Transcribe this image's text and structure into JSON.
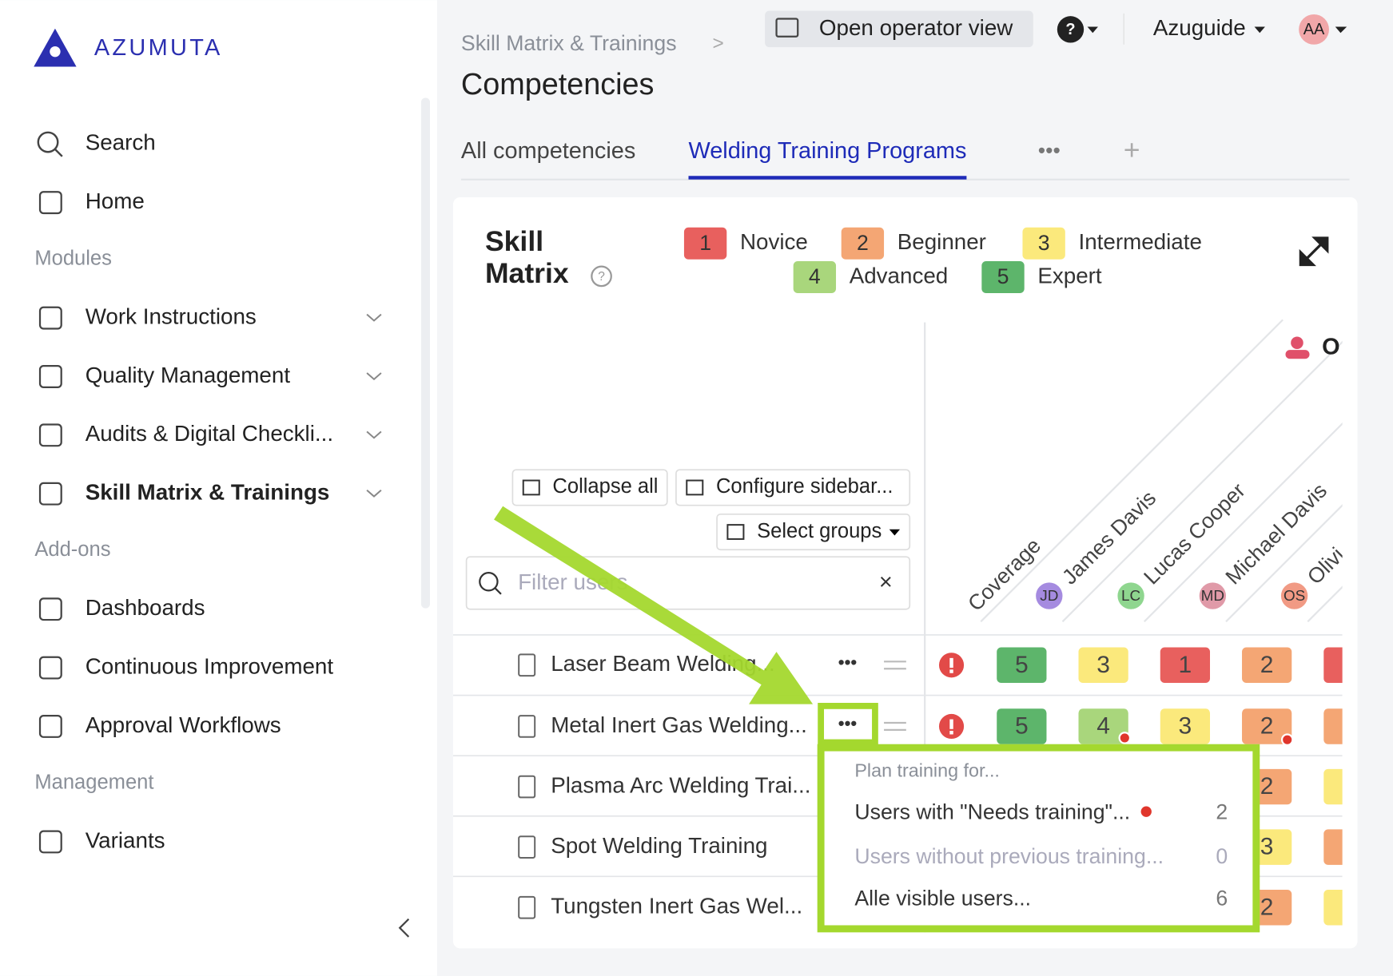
{
  "brand": "AZUMUTA",
  "sidebar": {
    "top": [
      {
        "label": "Search"
      },
      {
        "label": "Home"
      }
    ],
    "sections": [
      {
        "title": "Modules",
        "items": [
          {
            "label": "Work Instructions",
            "expandable": true
          },
          {
            "label": "Quality Management",
            "expandable": true
          },
          {
            "label": "Audits & Digital Checkli...",
            "expandable": true
          },
          {
            "label": "Skill Matrix & Trainings",
            "expandable": true,
            "active": true
          }
        ]
      },
      {
        "title": "Add-ons",
        "items": [
          {
            "label": "Dashboards"
          },
          {
            "label": "Continuous Improvement"
          },
          {
            "label": "Approval Workflows"
          }
        ]
      },
      {
        "title": "Management",
        "items": [
          {
            "label": "Variants"
          }
        ]
      }
    ]
  },
  "topbar": {
    "operator_view": "Open operator view",
    "workspace": "Azuguide",
    "avatar": "AA"
  },
  "breadcrumb": "Skill Matrix & Trainings",
  "page_title": "Competencies",
  "tabs": [
    "All competencies",
    "Welding Training Programs"
  ],
  "active_tab": 1,
  "matrix": {
    "title_lines": [
      "Skill",
      "Matrix"
    ],
    "legend": [
      {
        "level": 1,
        "label": "Novice",
        "color": "#e8605e"
      },
      {
        "level": 2,
        "label": "Beginner",
        "color": "#f4a674"
      },
      {
        "level": 3,
        "label": "Intermediate",
        "color": "#fbe97c"
      },
      {
        "level": 4,
        "label": "Advanced",
        "color": "#a9d67c"
      },
      {
        "level": 5,
        "label": "Expert",
        "color": "#5db56b"
      }
    ],
    "buttons": {
      "collapse": "Collapse all",
      "configure": "Configure sidebar...",
      "groups": "Select groups"
    },
    "filter_placeholder": "Filter users",
    "group_header": "O",
    "coverage_header": "Coverage",
    "users": [
      {
        "name": "James Davis",
        "initials": "JD",
        "color": "#a58be0"
      },
      {
        "name": "Lucas Cooper",
        "initials": "LC",
        "color": "#8fd68f"
      },
      {
        "name": "Michael Davis",
        "initials": "MD",
        "color": "#e09aa8"
      },
      {
        "name": "Olivi",
        "initials": "OS",
        "color": "#f19a84"
      }
    ],
    "rows": [
      {
        "name": "Laser Beam Welding...",
        "levels": [
          5,
          3,
          1,
          2,
          1
        ]
      },
      {
        "name": "Metal Inert Gas Welding...",
        "levels": [
          5,
          4,
          3,
          2,
          2
        ]
      },
      {
        "name": "Plasma Arc Welding Trai...",
        "levels": [
          null,
          null,
          null,
          2,
          3
        ]
      },
      {
        "name": "Spot Welding Training",
        "levels": [
          null,
          null,
          null,
          3,
          2
        ]
      },
      {
        "name": "Tungsten Inert Gas Wel...",
        "levels": [
          null,
          null,
          null,
          2,
          3
        ]
      }
    ]
  },
  "menu": {
    "heading": "Plan training for...",
    "items": [
      {
        "label": "Users with \"Needs training\"...",
        "count": 2,
        "flag": true
      },
      {
        "label": "Users without previous training...",
        "count": 0,
        "disabled": true
      },
      {
        "label": "Alle visible users...",
        "count": 6
      }
    ]
  }
}
